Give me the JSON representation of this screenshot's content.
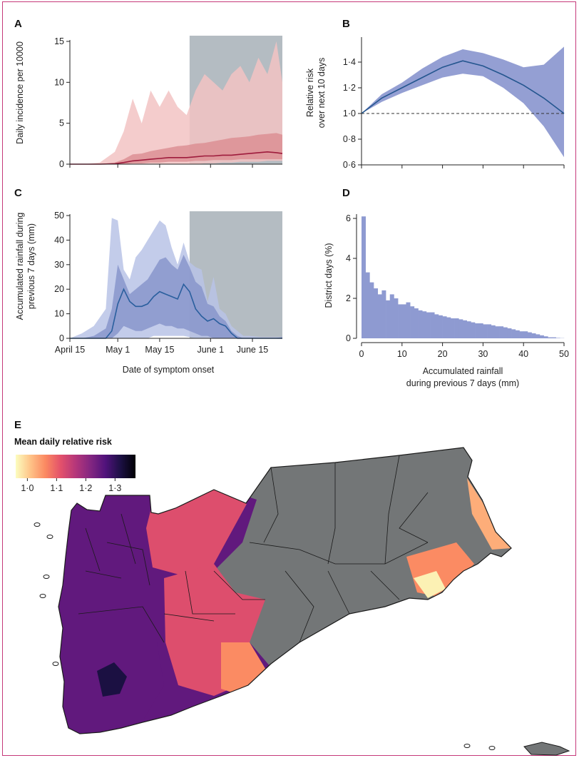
{
  "panels": {
    "A": {
      "letter": "A"
    },
    "B": {
      "letter": "B"
    },
    "C": {
      "letter": "C"
    },
    "D": {
      "letter": "D"
    },
    "E": {
      "letter": "E"
    }
  },
  "colors": {
    "frame": "#c5397a",
    "incidence_outer": "#f2c3c3",
    "incidence_inner": "#dc8f94",
    "incidence_line": "#9e1b3c",
    "rainfall_outer": "#b9c3e6",
    "rainfall_inner": "#8592c9",
    "rainfall_line": "#2a5f9e",
    "shade": "#9ba5ae",
    "rr_band": "#8e9ad1",
    "rr_line": "#24568f",
    "hist": "#8e9ad1",
    "no_data": "#737677"
  },
  "chart_data": [
    {
      "panel": "A",
      "type": "area",
      "ylabel": "Daily incidence per 10000",
      "xlabel": "",
      "ylim": [
        0,
        15
      ],
      "yticks": [
        "0",
        "5",
        "10",
        "15"
      ],
      "xlim": [
        "2017-04-15",
        "2017-06-25"
      ],
      "shaded_period": [
        "2017-05-25",
        "2017-06-25"
      ],
      "dates": [
        "Apr 15",
        "Apr 20",
        "Apr 25",
        "Apr 30",
        "May 3",
        "May 6",
        "May 9",
        "May 12",
        "May 15",
        "May 18",
        "May 21",
        "May 24",
        "May 27",
        "May 30",
        "Jun 2",
        "Jun 5",
        "Jun 8",
        "Jun 11",
        "Jun 14",
        "Jun 17",
        "Jun 20",
        "Jun 23",
        "Jun 25"
      ],
      "x_days": [
        0,
        5,
        10,
        15,
        18,
        21,
        24,
        27,
        30,
        33,
        36,
        39,
        42,
        45,
        48,
        51,
        54,
        57,
        60,
        63,
        66,
        69,
        71
      ],
      "series": [
        {
          "band": "outer",
          "upper": [
            0,
            0,
            0.2,
            1.5,
            4,
            8,
            5,
            9,
            7,
            9,
            7,
            6,
            9,
            11,
            10,
            9,
            11,
            12,
            10,
            13,
            11,
            15,
            10
          ],
          "lower": [
            0,
            0,
            0,
            0,
            0,
            0,
            0,
            0,
            0,
            0,
            0,
            0,
            0,
            0.1,
            0.1,
            0.2,
            0.2,
            0.3,
            0.3,
            0.3,
            0.4,
            0.4,
            0.4
          ]
        },
        {
          "band": "inner",
          "upper": [
            0,
            0,
            0,
            0.2,
            0.6,
            1.2,
            1.3,
            1.6,
            1.8,
            2,
            2.2,
            2.3,
            2.5,
            2.6,
            2.8,
            3,
            3.2,
            3.3,
            3.4,
            3.6,
            3.7,
            3.8,
            3.6
          ],
          "lower": [
            0,
            0,
            0,
            0,
            0,
            0.1,
            0.1,
            0.2,
            0.2,
            0.3,
            0.3,
            0.3,
            0.4,
            0.4,
            0.5,
            0.5,
            0.5,
            0.6,
            0.6,
            0.6,
            0.6,
            0.6,
            0.6
          ]
        },
        {
          "band": "median",
          "values": [
            0,
            0,
            0,
            0.05,
            0.2,
            0.4,
            0.5,
            0.6,
            0.7,
            0.8,
            0.8,
            0.8,
            0.9,
            1,
            1,
            1.1,
            1.1,
            1.2,
            1.3,
            1.4,
            1.5,
            1.4,
            1.3
          ]
        }
      ]
    },
    {
      "panel": "B",
      "type": "line",
      "ylabel": "Relative risk over next 10 days",
      "xlabel": "",
      "ylim": [
        0.6,
        1.5
      ],
      "yticks": [
        "0·6",
        "0·8",
        "1·0",
        "1·2",
        "1·4"
      ],
      "xlim": [
        0,
        50
      ],
      "reference_line": 1.0,
      "x": [
        0,
        5,
        10,
        15,
        20,
        25,
        30,
        35,
        40,
        45,
        50
      ],
      "series": [
        {
          "name": "",
          "values": [
            1.0,
            1.12,
            1.2,
            1.28,
            1.36,
            1.41,
            1.37,
            1.3,
            1.22,
            1.12,
            1.0
          ]
        }
      ],
      "band_upper": [
        1.0,
        1.15,
        1.24,
        1.35,
        1.44,
        1.5,
        1.47,
        1.42,
        1.36,
        1.38,
        1.52
      ],
      "band_lower": [
        1.0,
        1.09,
        1.16,
        1.22,
        1.28,
        1.31,
        1.29,
        1.2,
        1.08,
        0.9,
        0.66
      ]
    },
    {
      "panel": "C",
      "type": "area",
      "ylabel": "Accumulated rainfall during previous 7 days (mm)",
      "xlabel": "Date of symptom onset",
      "ylim": [
        0,
        50
      ],
      "yticks": [
        "0",
        "10",
        "20",
        "30",
        "40",
        "50"
      ],
      "xticks": [
        "April 15",
        "May 1",
        "May 15",
        "June 1",
        "June 15"
      ],
      "xtick_days": [
        0,
        16,
        30,
        47,
        61
      ],
      "xlim": [
        "2017-04-15",
        "2017-06-25"
      ],
      "shaded_period": [
        "2017-05-25",
        "2017-06-25"
      ],
      "x_days": [
        0,
        4,
        8,
        12,
        14,
        16,
        18,
        20,
        22,
        24,
        26,
        28,
        30,
        32,
        34,
        36,
        38,
        40,
        42,
        44,
        46,
        48,
        50,
        52,
        54,
        56,
        58,
        60,
        64,
        68,
        71
      ],
      "series": [
        {
          "band": "outer",
          "upper": [
            0,
            2,
            5,
            12,
            49,
            48,
            28,
            24,
            33,
            36,
            40,
            44,
            48,
            46,
            37,
            30,
            39,
            31,
            29,
            28,
            15,
            25,
            12,
            10,
            5,
            3,
            1,
            1,
            0.5,
            0.5,
            0.5
          ],
          "lower": [
            0,
            0,
            0,
            0,
            0,
            0,
            0,
            0,
            0,
            0,
            0,
            1,
            1,
            1,
            1,
            1,
            1,
            0.5,
            0,
            0,
            0,
            0,
            0,
            0,
            0,
            0,
            0,
            0,
            0,
            0,
            0
          ]
        },
        {
          "band": "inner",
          "upper": [
            0,
            0,
            1,
            4,
            12,
            30,
            24,
            18,
            20,
            22,
            24,
            28,
            32,
            33,
            30,
            28,
            34,
            29,
            23,
            21,
            14,
            13,
            9,
            7,
            3,
            1,
            0,
            0,
            0,
            0,
            0.5
          ],
          "lower": [
            0,
            0,
            0,
            0,
            0,
            2,
            5,
            4,
            3,
            3,
            4,
            5,
            6,
            5,
            5,
            4,
            4,
            3,
            2,
            1,
            1,
            0,
            0,
            0,
            0,
            0,
            0,
            0,
            0,
            0,
            0
          ]
        },
        {
          "band": "median",
          "values": [
            0,
            0,
            0,
            0,
            3,
            14,
            20,
            15,
            13,
            13,
            14,
            17,
            19,
            18,
            17,
            16,
            22,
            19,
            12,
            9,
            7,
            8,
            6,
            5,
            2,
            0,
            0,
            0,
            0,
            0,
            0
          ]
        }
      ]
    },
    {
      "panel": "D",
      "type": "bar",
      "ylabel": "District days (%)",
      "xlabel": "Accumulated rainfall during previous 7 days (mm)",
      "ylim": [
        0,
        6.3
      ],
      "yticks": [
        "0",
        "2",
        "4",
        "6"
      ],
      "xticks": [
        "0",
        "10",
        "20",
        "30",
        "40",
        "50"
      ],
      "xlim": [
        0,
        50
      ],
      "bin_width": 1,
      "values": [
        6.1,
        3.3,
        2.8,
        2.5,
        2.2,
        2.4,
        1.9,
        2.2,
        2.0,
        1.7,
        1.7,
        1.8,
        1.6,
        1.5,
        1.4,
        1.35,
        1.3,
        1.3,
        1.2,
        1.15,
        1.1,
        1.05,
        1.0,
        1.0,
        0.95,
        0.9,
        0.85,
        0.8,
        0.75,
        0.75,
        0.7,
        0.7,
        0.65,
        0.6,
        0.6,
        0.55,
        0.5,
        0.45,
        0.4,
        0.35,
        0.35,
        0.3,
        0.25,
        0.2,
        0.15,
        0.1,
        0.05,
        0.05,
        0.02,
        0.01
      ]
    },
    {
      "panel": "E",
      "type": "heatmap",
      "legend_title": "Mean daily relative risk",
      "legend_ticks": [
        "1·0",
        "1·1",
        "1·2",
        "1·3"
      ],
      "legend_tick_values": [
        1.0,
        1.1,
        1.2,
        1.3
      ],
      "legend_range": [
        0.96,
        1.37
      ],
      "colormap": [
        "#fcfdbf",
        "#fec287",
        "#fb8861",
        "#e3516b",
        "#b5367a",
        "#832681",
        "#50127b",
        "#1c1044",
        "#000004"
      ],
      "regions": [
        {
          "name": "",
          "value": 1.25
        },
        {
          "name": "",
          "value": 1.32
        },
        {
          "name": "",
          "value": 1.12
        },
        {
          "name": "",
          "value": 1.06
        },
        {
          "name": "",
          "value": 1.03
        },
        {
          "name": "",
          "value": 0.97
        }
      ]
    }
  ]
}
